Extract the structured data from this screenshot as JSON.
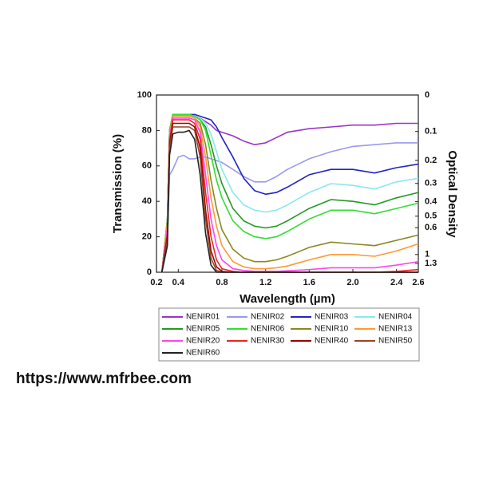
{
  "chart_data": {
    "type": "line",
    "y_label": "Transmission (%)",
    "x_label": "Wavelength (µm)",
    "y2_label": "Optical Density",
    "xlim": [
      0.2,
      2.6
    ],
    "xticks": [
      0.2,
      0.4,
      0.8,
      1.2,
      1.6,
      {
        "value": 2,
        "label": "2.0"
      },
      2.4,
      2.6
    ],
    "ylim": [
      0,
      100
    ],
    "yticks": [
      0,
      20,
      40,
      60,
      80,
      100
    ],
    "y2scale": "optical-density",
    "y2ticks": [
      0,
      0.1,
      0.2,
      0.3,
      0.4,
      0.5,
      0.6,
      1,
      1.3
    ],
    "x": [
      0.25,
      0.3,
      0.32,
      0.35,
      0.4,
      0.45,
      0.5,
      0.55,
      0.6,
      0.65,
      0.7,
      0.75,
      0.8,
      0.9,
      1.0,
      1.1,
      1.2,
      1.3,
      1.4,
      1.6,
      1.8,
      2.0,
      2.2,
      2.4,
      2.6
    ],
    "series": [
      {
        "name": "NENIR01",
        "color": "#9933cc",
        "values": [
          0,
          30,
          80,
          89,
          89,
          89,
          89,
          88,
          87,
          85,
          83,
          80,
          79,
          77,
          74,
          72,
          73,
          76,
          79,
          81,
          82,
          83,
          83,
          84,
          84
        ]
      },
      {
        "name": "NENIR02",
        "color": "#9999ee",
        "values": [
          0,
          20,
          55,
          58,
          65,
          66,
          64,
          64,
          65,
          65,
          64,
          63,
          62,
          58,
          54,
          51,
          51,
          54,
          58,
          64,
          68,
          71,
          72,
          73,
          73
        ]
      },
      {
        "name": "NENIR03",
        "color": "#2222cc",
        "values": [
          0,
          30,
          80,
          89,
          89,
          89,
          89,
          89,
          88,
          87,
          86,
          82,
          76,
          65,
          53,
          46,
          44,
          45,
          48,
          55,
          58,
          58,
          56,
          59,
          61
        ]
      },
      {
        "name": "NENIR04",
        "color": "#88e8ee",
        "values": [
          0,
          30,
          80,
          89,
          89,
          89,
          89,
          88,
          87,
          84,
          78,
          68,
          58,
          45,
          38,
          35,
          34,
          35,
          38,
          45,
          50,
          49,
          47,
          51,
          53
        ]
      },
      {
        "name": "NENIR05",
        "color": "#229922",
        "values": [
          0,
          30,
          80,
          89,
          89,
          89,
          89,
          88,
          86,
          82,
          72,
          60,
          50,
          36,
          29,
          26,
          25,
          26,
          29,
          36,
          41,
          40,
          38,
          42,
          45
        ]
      },
      {
        "name": "NENIR06",
        "color": "#33dd33",
        "values": [
          0,
          30,
          80,
          89,
          89,
          89,
          89,
          88,
          86,
          80,
          66,
          52,
          42,
          29,
          23,
          20,
          19,
          20,
          23,
          30,
          35,
          35,
          33,
          36,
          39
        ]
      },
      {
        "name": "NENIR10",
        "color": "#888822",
        "values": [
          0,
          28,
          78,
          88,
          88,
          88,
          88,
          87,
          84,
          72,
          52,
          36,
          24,
          13,
          8,
          6,
          6,
          7,
          9,
          14,
          17,
          16,
          15,
          18,
          21
        ]
      },
      {
        "name": "NENIR13",
        "color": "#ff9933",
        "values": [
          0,
          28,
          78,
          88,
          88,
          88,
          88,
          87,
          82,
          65,
          42,
          26,
          15,
          6,
          3,
          2,
          2,
          2.5,
          3.5,
          7,
          10,
          10,
          9,
          12,
          16
        ]
      },
      {
        "name": "NENIR20",
        "color": "#ff44ee",
        "values": [
          0,
          25,
          76,
          87,
          87,
          87,
          87,
          86,
          79,
          55,
          30,
          15,
          7,
          2,
          1,
          0.5,
          0.5,
          0.5,
          0.8,
          1.5,
          2.5,
          2.5,
          2.5,
          4,
          6
        ]
      },
      {
        "name": "NENIR30",
        "color": "#ee2222",
        "values": [
          0,
          22,
          74,
          86,
          86,
          86,
          86,
          84,
          75,
          45,
          20,
          7,
          2,
          0.5,
          0,
          0,
          0,
          0,
          0,
          0,
          0,
          0,
          0,
          0.5,
          1.5
        ]
      },
      {
        "name": "NENIR40",
        "color": "#990000",
        "values": [
          0,
          20,
          72,
          84,
          84,
          84,
          84,
          82,
          70,
          35,
          12,
          3,
          0.5,
          0,
          0,
          0,
          0,
          0,
          0,
          0,
          0,
          0,
          0,
          0,
          0
        ]
      },
      {
        "name": "NENIR50",
        "color": "#994422",
        "values": [
          0,
          18,
          70,
          82,
          82,
          82,
          82,
          80,
          65,
          30,
          8,
          1,
          0,
          0,
          0,
          0,
          0,
          0,
          0,
          0,
          0,
          0,
          0,
          0,
          0
        ]
      },
      {
        "name": "NENIR60",
        "color": "#222222",
        "values": [
          0,
          15,
          66,
          78,
          79,
          79,
          80,
          75,
          55,
          22,
          4,
          0,
          0,
          0,
          0,
          0,
          0,
          0,
          0,
          0,
          0,
          0,
          0,
          0,
          0
        ]
      }
    ]
  },
  "footer": {
    "url": "https://www.mfrbee.com"
  }
}
